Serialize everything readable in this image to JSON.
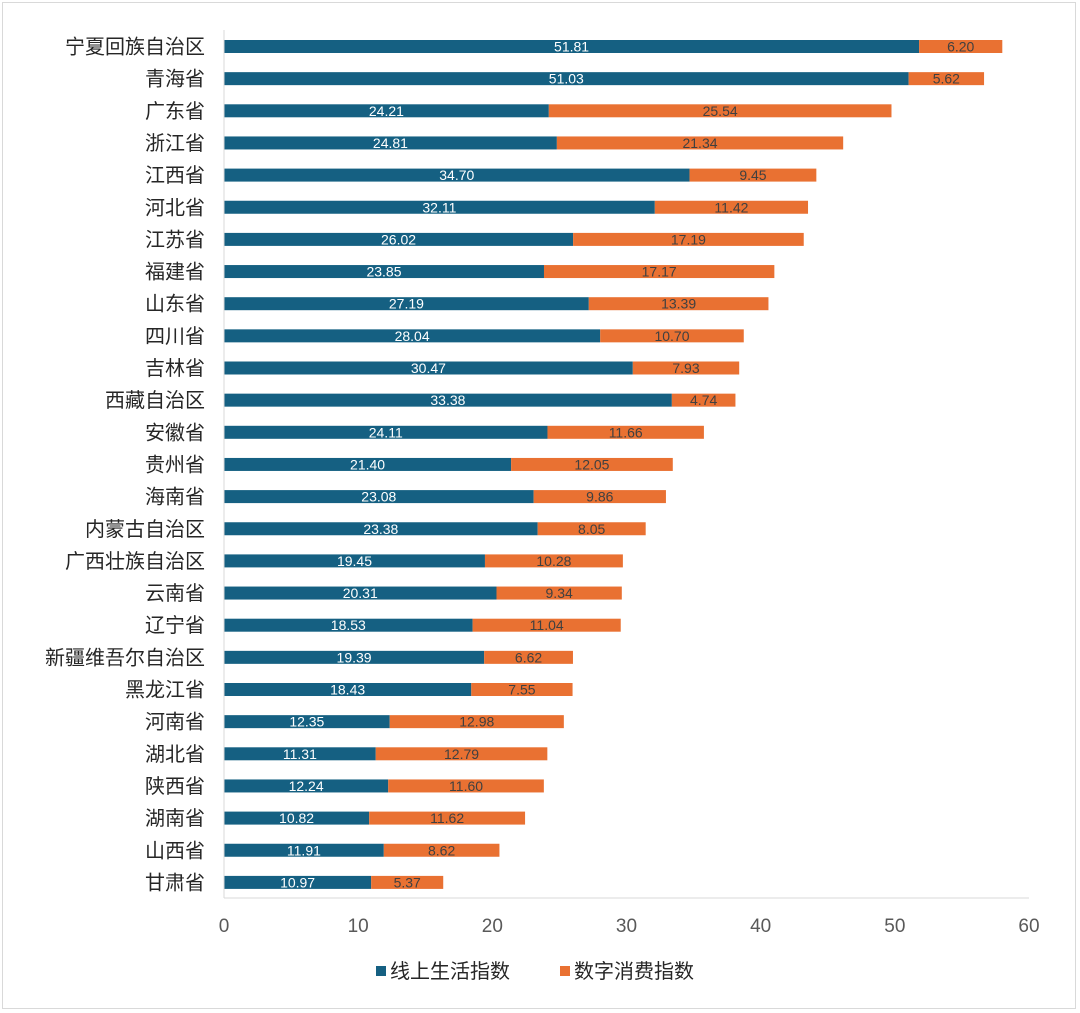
{
  "chart_data": {
    "type": "bar",
    "orientation": "horizontal",
    "stacked": true,
    "categories": [
      "宁夏回族自治区",
      "青海省",
      "广东省",
      "浙江省",
      "江西省",
      "河北省",
      "江苏省",
      "福建省",
      "山东省",
      "四川省",
      "吉林省",
      "西藏自治区",
      "安徽省",
      "贵州省",
      "海南省",
      "内蒙古自治区",
      "广西壮族自治区",
      "云南省",
      "辽宁省",
      "新疆维吾尔自治区",
      "黑龙江省",
      "河南省",
      "湖北省",
      "陕西省",
      "湖南省",
      "山西省",
      "甘肃省"
    ],
    "series": [
      {
        "name": "线上生活指数",
        "color": "#156082",
        "label_color": "#ffffff",
        "values": [
          51.81,
          51.03,
          24.21,
          24.81,
          34.7,
          32.11,
          26.02,
          23.85,
          27.19,
          28.04,
          30.47,
          33.38,
          24.11,
          21.4,
          23.08,
          23.38,
          19.45,
          20.31,
          18.53,
          19.39,
          18.43,
          12.35,
          11.31,
          12.24,
          10.82,
          11.91,
          10.97
        ],
        "labels": [
          "51.81",
          "51.03",
          "24.21",
          "24.81",
          "34.70",
          "32.11",
          "26.02",
          "23.85",
          "27.19",
          "28.04",
          "30.47",
          "33.38",
          "24.11",
          "21.40",
          "23.08",
          "23.38",
          "19.45",
          "20.31",
          "18.53",
          "19.39",
          "18.43",
          "12.35",
          "11.31",
          "12.24",
          "10.82",
          "11.91",
          "10.97"
        ]
      },
      {
        "name": "数字消费指数",
        "color": "#e97132",
        "label_color": "#404040",
        "values": [
          6.2,
          5.62,
          25.54,
          21.34,
          9.45,
          11.42,
          17.19,
          17.17,
          13.39,
          10.7,
          7.93,
          4.74,
          11.66,
          12.05,
          9.86,
          8.05,
          10.28,
          9.34,
          11.04,
          6.62,
          7.55,
          12.98,
          12.79,
          11.6,
          11.62,
          8.62,
          5.37
        ],
        "labels": [
          "6.20",
          "5.62",
          "25.54",
          "21.34",
          "9.45",
          "11.42",
          "17.19",
          "17.17",
          "13.39",
          "10.70",
          "7.93",
          "4.74",
          "11.66",
          "12.05",
          "9.86",
          "8.05",
          "10.28",
          "9.34",
          "11.04",
          "6.62",
          "7.55",
          "12.98",
          "12.79",
          "11.60",
          "11.62",
          "8.62",
          "5.37"
        ]
      }
    ],
    "xlim": [
      0,
      60
    ],
    "xticks": [
      "0",
      "10",
      "20",
      "30",
      "40",
      "50",
      "60"
    ],
    "grid": false,
    "legend_position": "bottom",
    "title": "",
    "xlabel": "",
    "ylabel": ""
  }
}
